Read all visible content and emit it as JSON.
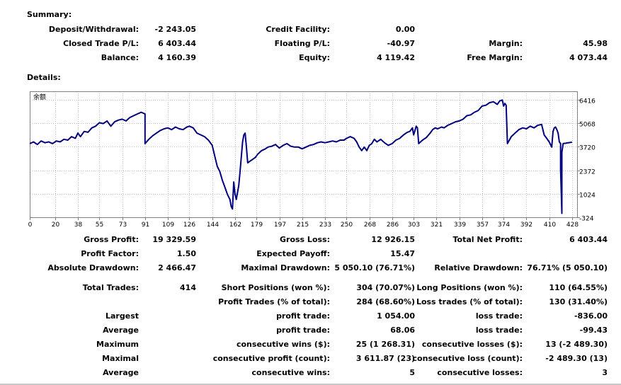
{
  "summary": {
    "heading": "Summary:",
    "deposit_label": "Deposit/Withdrawal:",
    "deposit_value": "-2 243.05",
    "credit_label": "Credit Facility:",
    "credit_value": "0.00",
    "closed_label": "Closed Trade P/L:",
    "closed_value": "6 403.44",
    "floating_label": "Floating P/L:",
    "floating_value": "-40.97",
    "margin_label": "Margin:",
    "margin_value": "45.98",
    "balance_label": "Balance:",
    "balance_value": "4 160.39",
    "equity_label": "Equity:",
    "equity_value": "4 119.42",
    "free_margin_label": "Free Margin:",
    "free_margin_value": "4 073.44"
  },
  "details": {
    "heading": "Details:"
  },
  "chart_data": {
    "type": "line",
    "title": "余额",
    "xlabel": "",
    "ylabel": "",
    "x_ticks": [
      "0",
      "20",
      "38",
      "55",
      "73",
      "91",
      "109",
      "126",
      "144",
      "162",
      "179",
      "197",
      "215",
      "233",
      "250",
      "268",
      "286",
      "303",
      "321",
      "339",
      "357",
      "374",
      "392",
      "410",
      "428"
    ],
    "y_ticks": [
      "6416",
      "5068",
      "3720",
      "2372",
      "1024",
      "-324"
    ],
    "xlim": [
      0,
      432
    ],
    "ylim": [
      -324,
      6900
    ],
    "grid": true,
    "series": [
      {
        "color": "#000080",
        "points": [
          [
            0,
            3900
          ],
          [
            3,
            4000
          ],
          [
            6,
            3850
          ],
          [
            9,
            4050
          ],
          [
            12,
            3950
          ],
          [
            15,
            4000
          ],
          [
            18,
            3900
          ],
          [
            21,
            4050
          ],
          [
            24,
            4000
          ],
          [
            27,
            4150
          ],
          [
            30,
            4100
          ],
          [
            33,
            4300
          ],
          [
            36,
            4200
          ],
          [
            38,
            4500
          ],
          [
            40,
            4300
          ],
          [
            43,
            4600
          ],
          [
            46,
            4550
          ],
          [
            49,
            4800
          ],
          [
            52,
            4900
          ],
          [
            55,
            5100
          ],
          [
            58,
            5050
          ],
          [
            61,
            5200
          ],
          [
            64,
            4900
          ],
          [
            67,
            5150
          ],
          [
            70,
            5250
          ],
          [
            73,
            5300
          ],
          [
            76,
            5200
          ],
          [
            79,
            5400
          ],
          [
            82,
            5500
          ],
          [
            85,
            5600
          ],
          [
            88,
            5700
          ],
          [
            91,
            5600
          ],
          [
            91,
            3900
          ],
          [
            94,
            4150
          ],
          [
            97,
            4350
          ],
          [
            100,
            4500
          ],
          [
            103,
            4650
          ],
          [
            106,
            4750
          ],
          [
            109,
            4800
          ],
          [
            112,
            4700
          ],
          [
            115,
            4850
          ],
          [
            118,
            4750
          ],
          [
            121,
            4700
          ],
          [
            124,
            4850
          ],
          [
            126,
            4900
          ],
          [
            129,
            4800
          ],
          [
            132,
            4500
          ],
          [
            135,
            4400
          ],
          [
            138,
            4300
          ],
          [
            141,
            4100
          ],
          [
            144,
            3800
          ],
          [
            146,
            3200
          ],
          [
            148,
            2600
          ],
          [
            150,
            2300
          ],
          [
            152,
            1800
          ],
          [
            154,
            1400
          ],
          [
            156,
            1000
          ],
          [
            158,
            700
          ],
          [
            159,
            300
          ],
          [
            160,
            150
          ],
          [
            161,
            1700
          ],
          [
            162,
            1000
          ],
          [
            163,
            700
          ],
          [
            165,
            1500
          ],
          [
            166,
            2300
          ],
          [
            168,
            4000
          ],
          [
            169,
            4400
          ],
          [
            170,
            4500
          ],
          [
            171,
            3700
          ],
          [
            172,
            2800
          ],
          [
            174,
            2900
          ],
          [
            176,
            3000
          ],
          [
            178,
            3100
          ],
          [
            180,
            3300
          ],
          [
            183,
            3500
          ],
          [
            186,
            3600
          ],
          [
            188,
            3700
          ],
          [
            191,
            3750
          ],
          [
            194,
            3850
          ],
          [
            197,
            3650
          ],
          [
            200,
            3800
          ],
          [
            203,
            3900
          ],
          [
            206,
            3750
          ],
          [
            209,
            3700
          ],
          [
            212,
            3700
          ],
          [
            215,
            3600
          ],
          [
            218,
            3700
          ],
          [
            221,
            3800
          ],
          [
            224,
            3850
          ],
          [
            227,
            3950
          ],
          [
            230,
            4000
          ],
          [
            233,
            3950
          ],
          [
            236,
            4000
          ],
          [
            239,
            4050
          ],
          [
            242,
            4000
          ],
          [
            245,
            4100
          ],
          [
            248,
            4100
          ],
          [
            250,
            4200
          ],
          [
            253,
            4300
          ],
          [
            256,
            4200
          ],
          [
            258,
            4000
          ],
          [
            260,
            3700
          ],
          [
            262,
            3500
          ],
          [
            264,
            3700
          ],
          [
            266,
            3500
          ],
          [
            268,
            3800
          ],
          [
            270,
            3900
          ],
          [
            272,
            4150
          ],
          [
            274,
            4000
          ],
          [
            277,
            4150
          ],
          [
            280,
            3950
          ],
          [
            283,
            3800
          ],
          [
            286,
            3900
          ],
          [
            289,
            4100
          ],
          [
            292,
            4200
          ],
          [
            295,
            4400
          ],
          [
            298,
            4550
          ],
          [
            300,
            4600
          ],
          [
            302,
            4800
          ],
          [
            303,
            4400
          ],
          [
            305,
            4900
          ],
          [
            306,
            4800
          ],
          [
            307,
            3900
          ],
          [
            310,
            4100
          ],
          [
            313,
            4250
          ],
          [
            316,
            4500
          ],
          [
            318,
            4700
          ],
          [
            320,
            4800
          ],
          [
            322,
            4750
          ],
          [
            325,
            4850
          ],
          [
            327,
            4800
          ],
          [
            330,
            4950
          ],
          [
            333,
            5050
          ],
          [
            336,
            5150
          ],
          [
            339,
            5200
          ],
          [
            342,
            5300
          ],
          [
            345,
            5500
          ],
          [
            348,
            5550
          ],
          [
            351,
            5700
          ],
          [
            354,
            5800
          ],
          [
            357,
            6050
          ],
          [
            360,
            6100
          ],
          [
            363,
            6250
          ],
          [
            366,
            6300
          ],
          [
            369,
            6150
          ],
          [
            371,
            6350
          ],
          [
            373,
            6400
          ],
          [
            374,
            6050
          ],
          [
            375,
            6200
          ],
          [
            376,
            6100
          ],
          [
            377,
            3900
          ],
          [
            380,
            4300
          ],
          [
            383,
            4500
          ],
          [
            386,
            4700
          ],
          [
            389,
            4800
          ],
          [
            392,
            4750
          ],
          [
            395,
            4900
          ],
          [
            398,
            4800
          ],
          [
            401,
            4950
          ],
          [
            404,
            5000
          ],
          [
            406,
            4400
          ],
          [
            408,
            4200
          ],
          [
            410,
            4000
          ],
          [
            412,
            3700
          ],
          [
            413,
            4600
          ],
          [
            414,
            4800
          ],
          [
            415,
            4850
          ],
          [
            416,
            4700
          ],
          [
            417,
            4500
          ],
          [
            418,
            4000
          ],
          [
            419,
            3900
          ],
          [
            419,
            2400
          ],
          [
            420,
            -100
          ],
          [
            420,
            3400
          ],
          [
            421,
            3900
          ],
          [
            423,
            3920
          ],
          [
            425,
            3950
          ],
          [
            428,
            3980
          ]
        ]
      }
    ]
  },
  "stats": {
    "gross_profit_label": "Gross Profit:",
    "gross_profit_value": "19 329.59",
    "gross_loss_label": "Gross Loss:",
    "gross_loss_value": "12 926.15",
    "total_net_label": "Total Net Profit:",
    "total_net_value": "6 403.44",
    "profit_factor_label": "Profit Factor:",
    "profit_factor_value": "1.50",
    "expected_payoff_label": "Expected Payoff:",
    "expected_payoff_value": "15.47",
    "abs_dd_label": "Absolute Drawdown:",
    "abs_dd_value": "2 466.47",
    "max_dd_label": "Maximal Drawdown:",
    "max_dd_value": "5 050.10 (76.71%)",
    "rel_dd_label": "Relative Drawdown:",
    "rel_dd_value": "76.71% (5 050.10)",
    "total_trades_label": "Total Trades:",
    "total_trades_value": "414",
    "short_label": "Short Positions (won %):",
    "short_value": "304 (70.07%)",
    "long_label": "Long Positions (won %):",
    "long_value": "110 (64.55%)",
    "profit_trades_label": "Profit Trades (% of total):",
    "profit_trades_value": "284 (68.60%)",
    "loss_trades_label": "Loss trades (% of total):",
    "loss_trades_value": "130 (31.40%)",
    "largest_label": "Largest",
    "largest_profit_label": "profit trade:",
    "largest_profit_value": "1 054.00",
    "largest_loss_label": "loss trade:",
    "largest_loss_value": "-836.00",
    "average_label": "Average",
    "average_profit_label": "profit trade:",
    "average_profit_value": "68.06",
    "average_loss_label": "loss trade:",
    "average_loss_value": "-99.43",
    "maximum_label": "Maximum",
    "max_cons_wins_label": "consecutive wins ($):",
    "max_cons_wins_value": "25 (1 268.31)",
    "max_cons_losses_label": "consecutive losses ($):",
    "max_cons_losses_value": "13 (-2 489.30)",
    "maximal_label": "Maximal",
    "maximal_profit_label": "consecutive profit (count):",
    "maximal_profit_value": "3 611.87 (23)",
    "maximal_loss_label": "consecutive loss (count):",
    "maximal_loss_value": "-2 489.30 (13)",
    "average2_label": "Average",
    "avg_cons_wins_label": "consecutive wins:",
    "avg_cons_wins_value": "5",
    "avg_cons_losses_label": "consecutive losses:",
    "avg_cons_losses_value": "3"
  }
}
